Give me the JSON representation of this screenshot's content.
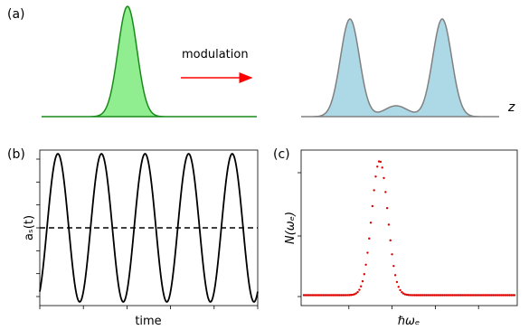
{
  "panels": {
    "a": {
      "label": "(a)",
      "arrow_text": "modulation",
      "axis_label": "z"
    },
    "b": {
      "label": "(b)",
      "xlabel": "time",
      "ylabel": "aₛ(t)"
    },
    "c": {
      "label": "(c)",
      "xlabel": "ℏωₑ",
      "ylabel": "N(ωₑ)"
    }
  },
  "colors": {
    "green_fill": "#90ee90",
    "green_line": "#1a8a1a",
    "blue_fill": "#add8e6",
    "gray_line": "#808080",
    "arrow": "#ff0000",
    "dots": "#dd0000"
  },
  "chart_data": [
    {
      "type": "line",
      "panel": "b",
      "title": "",
      "xlabel": "time",
      "ylabel": "aₛ(t)",
      "series": [
        {
          "kind": "sine",
          "periods": 5,
          "amplitude": 1.0,
          "style": "solid"
        },
        {
          "kind": "constant",
          "value": 0.0,
          "style": "dashed"
        }
      ],
      "ylim": [
        -1.05,
        1.05
      ],
      "grid": false
    },
    {
      "type": "scatter",
      "panel": "c",
      "title": "",
      "xlabel": "ℏωₑ",
      "ylabel": "N(ωₑ)",
      "peak_position": 0.36,
      "peak_width": 0.038,
      "baseline": 0.01,
      "ylim": [
        0,
        1.0
      ],
      "grid": false
    }
  ]
}
